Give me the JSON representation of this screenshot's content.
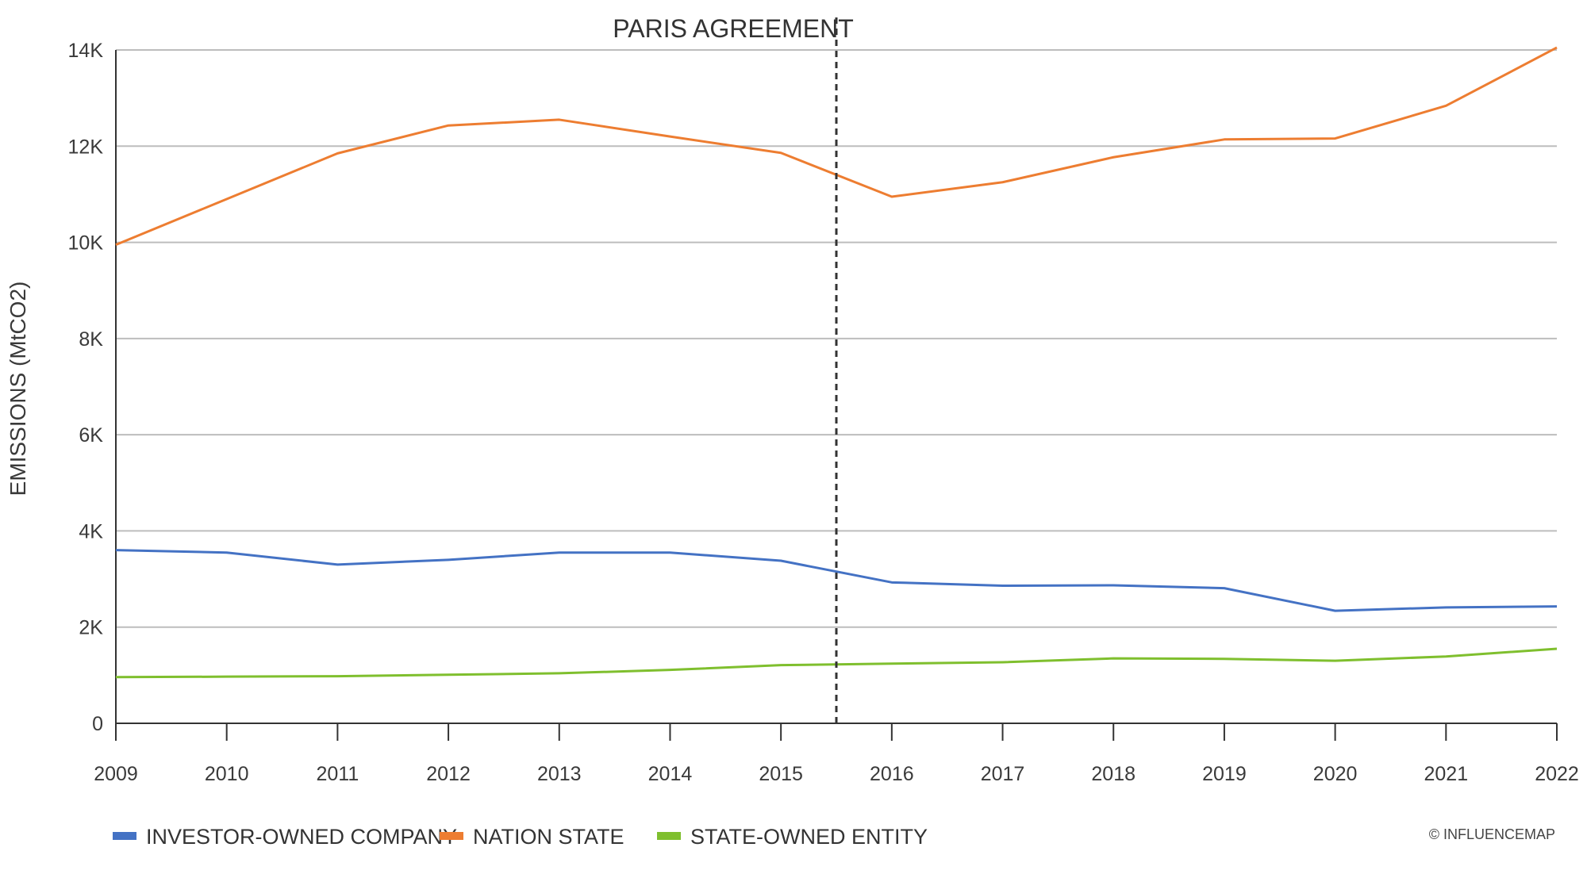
{
  "chart_data": {
    "type": "line",
    "title": "",
    "xlabel": "",
    "ylabel": "EMISSIONS (MtCO2)",
    "x": [
      "2009",
      "2010",
      "2011",
      "2012",
      "2013",
      "2014",
      "2015",
      "2016",
      "2017",
      "2018",
      "2019",
      "2020",
      "2021",
      "2022"
    ],
    "ylim": [
      0,
      14000
    ],
    "yticks": [
      0,
      2000,
      4000,
      6000,
      8000,
      10000,
      12000,
      14000
    ],
    "ytick_labels": [
      "0",
      "2K",
      "4K",
      "6K",
      "8K",
      "10K",
      "12K",
      "14K"
    ],
    "grid": true,
    "legend_position": "bottom-left",
    "series": [
      {
        "name": "INVESTOR-OWNED COMPANY",
        "color": "#4472c4",
        "values": [
          3600,
          3550,
          3300,
          3400,
          3550,
          3550,
          3380,
          2930,
          2860,
          2870,
          2810,
          2340,
          2410,
          2430
        ]
      },
      {
        "name": "NATION STATE",
        "color": "#ed7d31",
        "values": [
          9950,
          10900,
          11850,
          12430,
          12550,
          12200,
          11860,
          10950,
          11250,
          11770,
          12140,
          12160,
          12840,
          14050
        ]
      },
      {
        "name": "STATE-OWNED ENTITY",
        "color": "#7fbf2e",
        "values": [
          960,
          970,
          980,
          1010,
          1040,
          1110,
          1210,
          1240,
          1270,
          1350,
          1340,
          1300,
          1390,
          1550
        ]
      }
    ],
    "annotations": [
      {
        "label": "PARIS AGREEMENT",
        "x": 2015.5,
        "style": "dashed-vertical-line"
      }
    ]
  },
  "credit": "© INFLUENCEMAP"
}
